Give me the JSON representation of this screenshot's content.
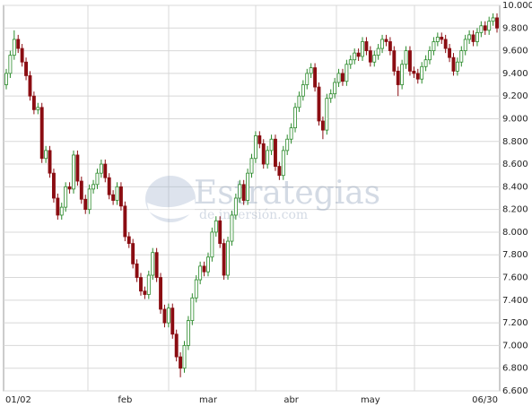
{
  "chart_data": {
    "type": "candlestick",
    "watermark": [
      "Estrategias",
      "de inversión.com"
    ],
    "categories": [
      "01/02",
      null,
      null,
      null,
      null,
      null,
      null,
      null,
      null,
      null,
      null,
      null,
      null,
      null,
      null,
      null,
      null,
      null,
      null,
      null,
      null,
      null,
      null,
      null,
      null,
      null,
      null,
      null,
      null,
      null,
      "feb",
      null,
      null,
      null,
      null,
      null,
      null,
      null,
      null,
      null,
      null,
      null,
      null,
      null,
      null,
      null,
      null,
      null,
      null,
      null,
      null,
      "mar",
      null,
      null,
      null,
      null,
      null,
      null,
      null,
      null,
      null,
      null,
      null,
      null,
      null,
      null,
      null,
      null,
      null,
      null,
      null,
      null,
      "abr",
      null,
      null,
      null,
      null,
      null,
      null,
      null,
      null,
      null,
      null,
      null,
      null,
      null,
      null,
      null,
      null,
      null,
      null,
      null,
      "may",
      null,
      null,
      null,
      null,
      null,
      null,
      null,
      null,
      null,
      null,
      null,
      null,
      null,
      null,
      null,
      null,
      null,
      null,
      null,
      null,
      null,
      null,
      null,
      null,
      null,
      null,
      null,
      null,
      null,
      null,
      null,
      "06/30"
    ],
    "open": [
      9300,
      9400,
      9560,
      9700,
      9620,
      9500,
      9380,
      9200,
      9080,
      9100,
      8650,
      8720,
      8520,
      8300,
      8150,
      8220,
      8400,
      8380,
      8680,
      8450,
      8290,
      8200,
      8380,
      8420,
      8520,
      8600,
      8480,
      8330,
      8280,
      8400,
      8230,
      7960,
      7900,
      7720,
      7600,
      7480,
      7450,
      7620,
      7820,
      7600,
      7320,
      7200,
      7330,
      7100,
      6900,
      6800,
      7000,
      7220,
      7420,
      7580,
      7700,
      7650,
      7780,
      8000,
      8100,
      7900,
      7620,
      7920,
      8150,
      8300,
      8420,
      8280,
      8520,
      8650,
      8850,
      8780,
      8600,
      8720,
      8820,
      8580,
      8500,
      8720,
      8820,
      8920,
      9100,
      9200,
      9300,
      9400,
      9450,
      9280,
      8980,
      8900,
      9180,
      9220,
      9320,
      9400,
      9330,
      9480,
      9520,
      9580,
      9550,
      9680,
      9600,
      9500,
      9560,
      9620,
      9700,
      9680,
      9600,
      9420,
      9300,
      9480,
      9600,
      9420,
      9400,
      9350,
      9460,
      9520,
      9600,
      9680,
      9720,
      9700,
      9620,
      9540,
      9420,
      9500,
      9600,
      9700,
      9740,
      9680,
      9760,
      9820,
      9780,
      9860,
      9890
    ],
    "high": [
      9440,
      9600,
      9780,
      9740,
      9660,
      9540,
      9420,
      9240,
      9140,
      9140,
      8760,
      8760,
      8560,
      8340,
      8260,
      8440,
      8440,
      8720,
      8720,
      8490,
      8330,
      8420,
      8460,
      8560,
      8640,
      8640,
      8520,
      8370,
      8440,
      8440,
      8270,
      8000,
      7940,
      7760,
      7640,
      7520,
      7660,
      7860,
      7860,
      7640,
      7360,
      7370,
      7370,
      7140,
      6940,
      7040,
      7260,
      7460,
      7620,
      7740,
      7740,
      7820,
      8040,
      8140,
      8140,
      7940,
      7960,
      8190,
      8340,
      8460,
      8460,
      8560,
      8690,
      8890,
      8890,
      8820,
      8760,
      8860,
      8860,
      8620,
      8760,
      8860,
      8960,
      9140,
      9240,
      9340,
      9440,
      9490,
      9490,
      9320,
      9020,
      9220,
      9260,
      9360,
      9440,
      9440,
      9520,
      9560,
      9620,
      9620,
      9720,
      9720,
      9640,
      9600,
      9660,
      9740,
      9740,
      9720,
      9640,
      9460,
      9520,
      9640,
      9640,
      9460,
      9440,
      9500,
      9560,
      9640,
      9720,
      9760,
      9760,
      9740,
      9660,
      9580,
      9540,
      9640,
      9740,
      9780,
      9780,
      9800,
      9860,
      9860,
      9900,
      9930,
      9930
    ],
    "low": [
      9260,
      9360,
      9520,
      9580,
      9460,
      9340,
      9160,
      9040,
      9040,
      8610,
      8610,
      8480,
      8260,
      8110,
      8110,
      8180,
      8340,
      8340,
      8410,
      8250,
      8160,
      8160,
      8340,
      8380,
      8480,
      8440,
      8290,
      8240,
      8240,
      8190,
      7920,
      7860,
      7680,
      7560,
      7440,
      7410,
      7410,
      7580,
      7560,
      7280,
      7160,
      7160,
      7060,
      6860,
      6720,
      6760,
      6960,
      7180,
      7380,
      7540,
      7610,
      7610,
      7740,
      7960,
      7860,
      7580,
      7580,
      7880,
      8110,
      8260,
      8240,
      8240,
      8480,
      8610,
      8740,
      8560,
      8560,
      8680,
      8540,
      8460,
      8460,
      8680,
      8780,
      8880,
      9060,
      9160,
      9260,
      9360,
      9240,
      8940,
      8820,
      8860,
      9140,
      9180,
      9280,
      9290,
      9290,
      9440,
      9480,
      9510,
      9510,
      9560,
      9460,
      9460,
      9520,
      9580,
      9640,
      9560,
      9380,
      9200,
      9260,
      9440,
      9380,
      9360,
      9310,
      9310,
      9420,
      9480,
      9560,
      9640,
      9660,
      9580,
      9500,
      9380,
      9380,
      9460,
      9560,
      9660,
      9640,
      9640,
      9720,
      9740,
      9740,
      9820,
      9760
    ],
    "close": [
      9400,
      9560,
      9700,
      9620,
      9500,
      9380,
      9200,
      9080,
      9100,
      8650,
      8720,
      8520,
      8300,
      8150,
      8220,
      8400,
      8380,
      8680,
      8450,
      8290,
      8200,
      8380,
      8420,
      8520,
      8600,
      8480,
      8330,
      8280,
      8400,
      8230,
      7960,
      7900,
      7720,
      7600,
      7480,
      7450,
      7620,
      7820,
      7600,
      7320,
      7200,
      7330,
      7100,
      6900,
      6800,
      7000,
      7220,
      7420,
      7580,
      7700,
      7650,
      7780,
      8000,
      8100,
      7900,
      7620,
      7920,
      8150,
      8300,
      8420,
      8280,
      8520,
      8650,
      8850,
      8780,
      8600,
      8720,
      8820,
      8580,
      8500,
      8720,
      8820,
      8920,
      9100,
      9200,
      9300,
      9400,
      9450,
      9280,
      8980,
      8900,
      9180,
      9220,
      9320,
      9400,
      9330,
      9480,
      9520,
      9580,
      9550,
      9680,
      9600,
      9500,
      9560,
      9620,
      9700,
      9680,
      9600,
      9420,
      9300,
      9480,
      9600,
      9420,
      9400,
      9350,
      9460,
      9520,
      9600,
      9680,
      9720,
      9700,
      9620,
      9540,
      9420,
      9500,
      9600,
      9700,
      9740,
      9680,
      9760,
      9820,
      9780,
      9860,
      9890,
      9800
    ],
    "up_color": "#2a8a2a",
    "down_color": "#8b0d12",
    "ylim": [
      6600,
      10000
    ],
    "yticks": [
      {
        "value": 6600,
        "label": "6.600"
      },
      {
        "value": 6800,
        "label": "6.800"
      },
      {
        "value": 7000,
        "label": "7.000"
      },
      {
        "value": 7200,
        "label": "7.200"
      },
      {
        "value": 7400,
        "label": "7.400"
      },
      {
        "value": 7600,
        "label": "7.600"
      },
      {
        "value": 7800,
        "label": "7.800"
      },
      {
        "value": 8000,
        "label": "8.000"
      },
      {
        "value": 8200,
        "label": "8.200"
      },
      {
        "value": 8400,
        "label": "8.400"
      },
      {
        "value": 8600,
        "label": "8.600"
      },
      {
        "value": 8800,
        "label": "8.800"
      },
      {
        "value": 9000,
        "label": "9.000"
      },
      {
        "value": 9200,
        "label": "9.200"
      },
      {
        "value": 9400,
        "label": "9.400"
      },
      {
        "value": 9600,
        "label": "9.600"
      },
      {
        "value": 9800,
        "label": "9.800"
      },
      {
        "value": 10000,
        "label": "10.000"
      }
    ],
    "grid": true
  }
}
